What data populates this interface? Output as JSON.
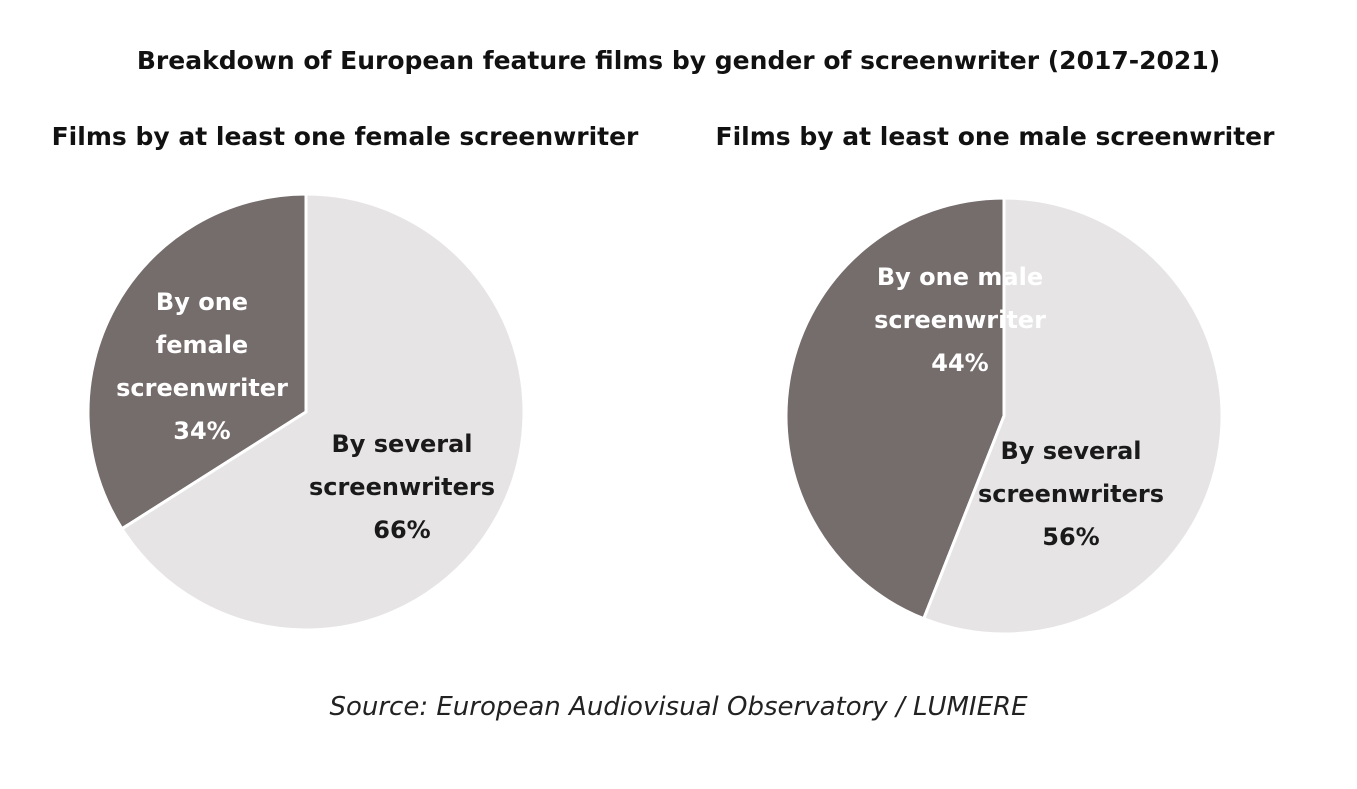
{
  "title": "Breakdown of European feature films by gender of screenwriter (2017-2021)",
  "source": "Source: European Audiovisual Observatory / LUMIERE",
  "chart_data": [
    {
      "type": "pie",
      "title": "Films by at least one female screenwriter",
      "slices": [
        {
          "label_lines": [
            "By one",
            "female",
            "screenwriter"
          ],
          "value": 34,
          "value_label": "34%",
          "color": "#756c6c",
          "text_color": "#ffffff"
        },
        {
          "label_lines": [
            "By several",
            "screenwriters"
          ],
          "value": 66,
          "value_label": "66%",
          "color": "#e6e4e5",
          "text_color": "#1a1a1a"
        }
      ]
    },
    {
      "type": "pie",
      "title": "Films by at least one male screenwriter",
      "slices": [
        {
          "label_lines": [
            "By one male",
            "screenwriter"
          ],
          "value": 44,
          "value_label": "44%",
          "color": "#756c6c",
          "text_color": "#ffffff"
        },
        {
          "label_lines": [
            "By several",
            "screenwriters"
          ],
          "value": 56,
          "value_label": "56%",
          "color": "#e6e4e5",
          "text_color": "#1a1a1a"
        }
      ]
    }
  ]
}
